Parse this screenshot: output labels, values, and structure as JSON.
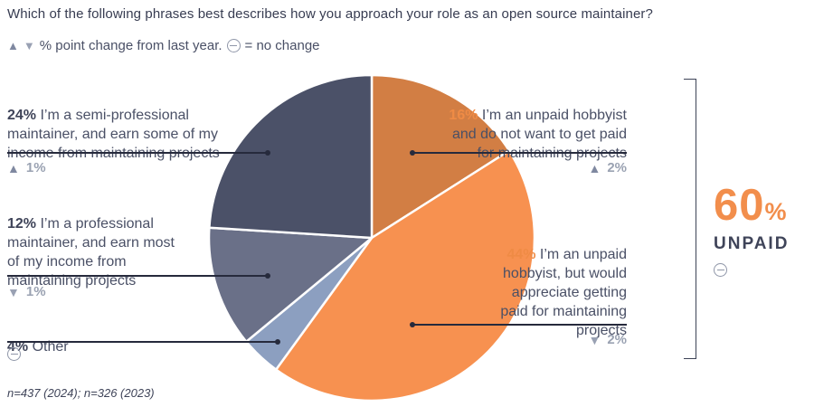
{
  "title": "Which of the following phrases best describes how you approach your role as an open source maintainer?",
  "icons": {
    "up": "▲",
    "down": "▼"
  },
  "legend": {
    "text": "% point change from last year.",
    "no_change_text": "= no change"
  },
  "chart_data": {
    "type": "pie",
    "title": "Which of the following phrases best describes how you approach your role as an open source maintainer?",
    "start_angle_deg": 0,
    "direction": "clockwise",
    "slices": [
      {
        "label": "I’m an unpaid hobbyist and do not want to get paid for maintaining projects",
        "value": 16,
        "change_from_last_year": "+2",
        "color": "#d27e44"
      },
      {
        "label": "I’m an unpaid hobbyist, but would appreciate getting paid for maintaining projects",
        "value": 44,
        "change_from_last_year": "-2",
        "color": "#f79150"
      },
      {
        "label": "Other",
        "value": 4,
        "change_from_last_year": "0",
        "color": "#8c9fc0"
      },
      {
        "label": "I’m a professional maintainer, and earn most of my income from maintaining projects",
        "value": 12,
        "change_from_last_year": "-1",
        "color": "#6a7088"
      },
      {
        "label": "I’m a semi-professional maintainer, and earn some of my income from maintaining projects",
        "value": 24,
        "change_from_last_year": "+1",
        "color": "#4b5168"
      }
    ],
    "aggregate": {
      "label": "UNPAID",
      "value": 60,
      "change_from_last_year": "0"
    },
    "sample": "n=437 (2024); n=326 (2023)"
  },
  "callouts": {
    "left": [
      {
        "pct": "24%",
        "text": " I’m a semi-professional\nmaintainer, and earn some of my\nincome from maintaining projects",
        "change": "1%",
        "direction": "up"
      },
      {
        "pct": "12%",
        "text": " I’m a professional\nmaintainer, and earn most\nof my income from\nmaintaining projects",
        "change": "1%",
        "direction": "down"
      },
      {
        "pct": "4%",
        "text": " Other",
        "change": "",
        "direction": "none"
      }
    ],
    "right": [
      {
        "pct": "16%",
        "text": " I’m an unpaid hobbyist\nand do not want to get paid\nfor maintaining projects",
        "change": "2%",
        "direction": "up"
      },
      {
        "pct": "44%",
        "text": " I’m an unpaid\nhobbyist, but would\nappreciate getting\npaid for maintaining\nprojects",
        "change": "2%",
        "direction": "down"
      }
    ]
  },
  "summary": {
    "value": "60",
    "unit": "%",
    "label": "UNPAID"
  },
  "footnote": "n=437 (2024); n=326 (2023)"
}
